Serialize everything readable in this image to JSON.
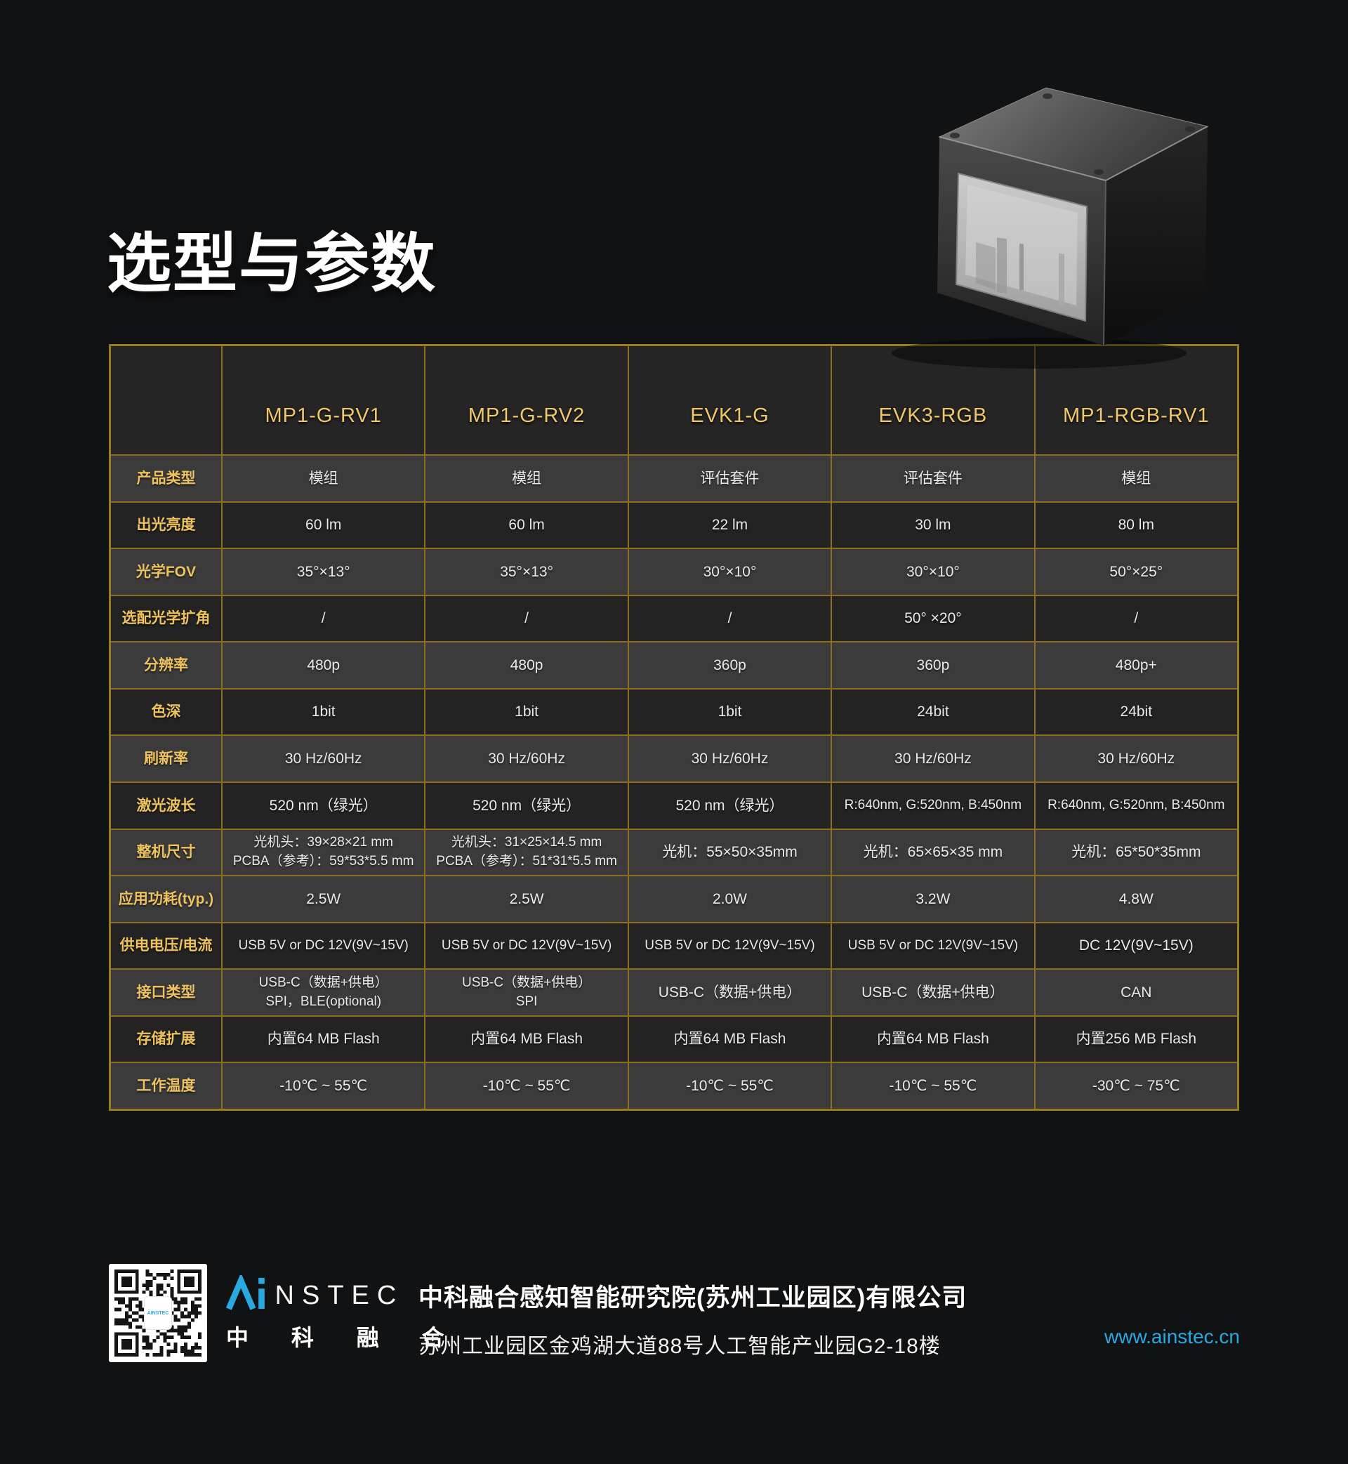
{
  "page": {
    "title": "选型与参数"
  },
  "colors": {
    "background": "#111214",
    "table_border_gold": "#8d6e1c",
    "label_gold": "#eec25f",
    "row_light": "#3b3b3b",
    "row_dark": "#232323",
    "accent_blue": "#29a9e0"
  },
  "table": {
    "columns": [
      "MP1-G-RV1",
      "MP1-G-RV2",
      "EVK1-G",
      "EVK3-RGB",
      "MP1-RGB-RV1"
    ],
    "rows": [
      {
        "label": "产品类型",
        "shade": "light",
        "values": [
          "模组",
          "模组",
          "评估套件",
          "评估套件",
          "模组"
        ]
      },
      {
        "label": "出光亮度",
        "shade": "dark",
        "values": [
          "60 lm",
          "60 lm",
          "22 lm",
          "30 lm",
          "80 lm"
        ]
      },
      {
        "label": "光学FOV",
        "shade": "light",
        "values": [
          "35°×13°",
          "35°×13°",
          "30°×10°",
          "30°×10°",
          "50°×25°"
        ]
      },
      {
        "label": "选配光学扩角",
        "shade": "dark",
        "values": [
          "/",
          "/",
          "/",
          "50° ×20°",
          "/"
        ]
      },
      {
        "label": "分辨率",
        "shade": "light",
        "values": [
          "480p",
          "480p",
          "360p",
          "360p",
          "480p+"
        ]
      },
      {
        "label": "色深",
        "shade": "dark",
        "values": [
          "1bit",
          "1bit",
          "1bit",
          "24bit",
          "24bit"
        ]
      },
      {
        "label": "刷新率",
        "shade": "light",
        "values": [
          "30 Hz/60Hz",
          "30 Hz/60Hz",
          "30 Hz/60Hz",
          "30 Hz/60Hz",
          "30 Hz/60Hz"
        ]
      },
      {
        "label": "激光波长",
        "shade": "dark",
        "values": [
          "520 nm（绿光）",
          "520 nm（绿光）",
          "520 nm（绿光）",
          "R:640nm, G:520nm, B:450nm",
          "R:640nm, G:520nm, B:450nm"
        ]
      },
      {
        "label": "整机尺寸",
        "shade": "light",
        "values": [
          "光机头：39×28×21 mm\nPCBA（参考）：59*53*5.5 mm",
          "光机头：31×25×14.5 mm\nPCBA（参考）：51*31*5.5 mm",
          "光机：55×50×35mm",
          "光机：65×65×35 mm",
          "光机：65*50*35mm"
        ]
      },
      {
        "label": "应用功耗(typ.)",
        "shade": "light",
        "values": [
          "2.5W",
          "2.5W",
          "2.0W",
          "3.2W",
          "4.8W"
        ]
      },
      {
        "label": "供电电压/电流",
        "shade": "dark",
        "values": [
          "USB 5V or DC 12V(9V~15V)",
          "USB 5V or DC 12V(9V~15V)",
          "USB 5V or DC 12V(9V~15V)",
          "USB 5V or DC 12V(9V~15V)",
          "DC 12V(9V~15V)"
        ]
      },
      {
        "label": "接口类型",
        "shade": "light",
        "values": [
          "USB-C（数据+供电）\nSPI，BLE(optional)",
          "USB-C（数据+供电）\nSPI",
          "USB-C（数据+供电）",
          "USB-C（数据+供电）",
          "CAN"
        ]
      },
      {
        "label": "存储扩展",
        "shade": "dark",
        "values": [
          "内置64 MB Flash",
          "内置64 MB Flash",
          "内置64 MB Flash",
          "内置64 MB Flash",
          "内置256 MB Flash"
        ]
      },
      {
        "label": "工作温度",
        "shade": "light",
        "values": [
          "-10℃ ~ 55℃",
          "-10℃ ~ 55℃",
          "-10℃ ~ 55℃",
          "-10℃ ~ 55℃",
          "-30℃ ~ 75℃"
        ]
      }
    ]
  },
  "footer": {
    "qr_label": "AINSTEC",
    "logo_en": "NSTEC",
    "logo_cn": "中 科 融 合",
    "company_name": "中科融合感知智能研究院(苏州工业园区)有限公司",
    "company_address": "苏州工业园区金鸡湖大道88号人工智能产业园G2-18楼",
    "website": "www.ainstec.cn"
  }
}
